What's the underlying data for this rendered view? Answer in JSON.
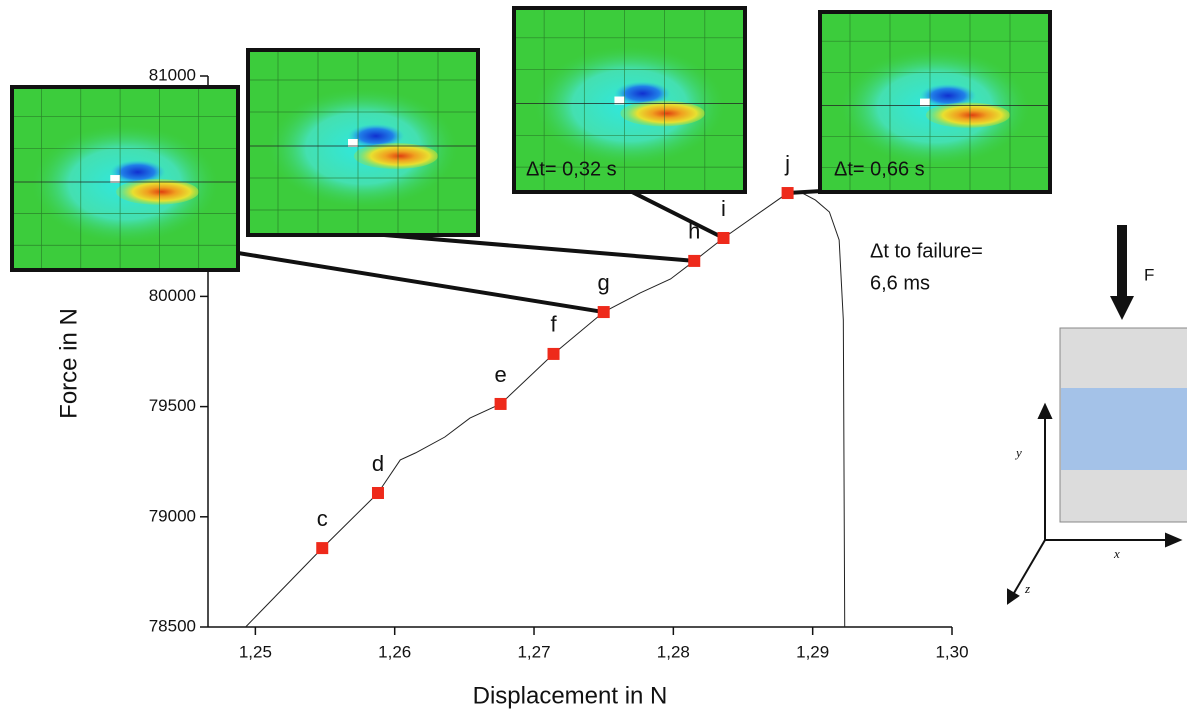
{
  "chart_data": {
    "type": "line",
    "x_label": "Displacement in N",
    "y_label": "Force in N",
    "xlim": [
      1.2466,
      1.3
    ],
    "ylim": [
      78500,
      81000
    ],
    "xticks": [
      {
        "value": 1.25,
        "label": "1,25"
      },
      {
        "value": 1.26,
        "label": "1,26"
      },
      {
        "value": 1.27,
        "label": "1,27"
      },
      {
        "value": 1.28,
        "label": "1,28"
      },
      {
        "value": 1.29,
        "label": "1,29"
      },
      {
        "value": 1.3,
        "label": "1,30"
      }
    ],
    "yticks": [
      78500,
      79000,
      79500,
      80000,
      81000
    ],
    "line_color": "#222222",
    "x": [
      1.2493,
      1.2548,
      1.2588,
      1.2604,
      1.2615,
      1.2636,
      1.2654,
      1.2676,
      1.2714,
      1.275,
      1.2776,
      1.2798,
      1.2815,
      1.2836,
      1.2882,
      1.2891,
      1.2902,
      1.2912,
      1.2919,
      1.2922,
      1.2923
    ],
    "values": [
      78500,
      78858,
      79108,
      79258,
      79290,
      79362,
      79448,
      79512,
      79739,
      79929,
      80015,
      80079,
      80161,
      80265,
      80469,
      80474,
      80437,
      80383,
      80256,
      79893,
      78500
    ],
    "points": {
      "color": "#ee2a1b",
      "labels": [
        "c",
        "d",
        "e",
        "f",
        "g",
        "h",
        "i",
        "j"
      ],
      "x": [
        1.2548,
        1.2588,
        1.2676,
        1.2714,
        1.275,
        1.2815,
        1.2836,
        1.2882
      ],
      "values": [
        78858,
        79108,
        79512,
        79739,
        79929,
        80161,
        80265,
        80469
      ]
    },
    "annotations": {
      "inset_3": "Δt= 0,32 s",
      "inset_4": "Δt= 0,66 s",
      "failure_1": "Δt to failure=",
      "failure_2": "6,6 ms",
      "force": "F",
      "axis_y": "y",
      "axis_x": "x",
      "axis_z": "z"
    }
  }
}
